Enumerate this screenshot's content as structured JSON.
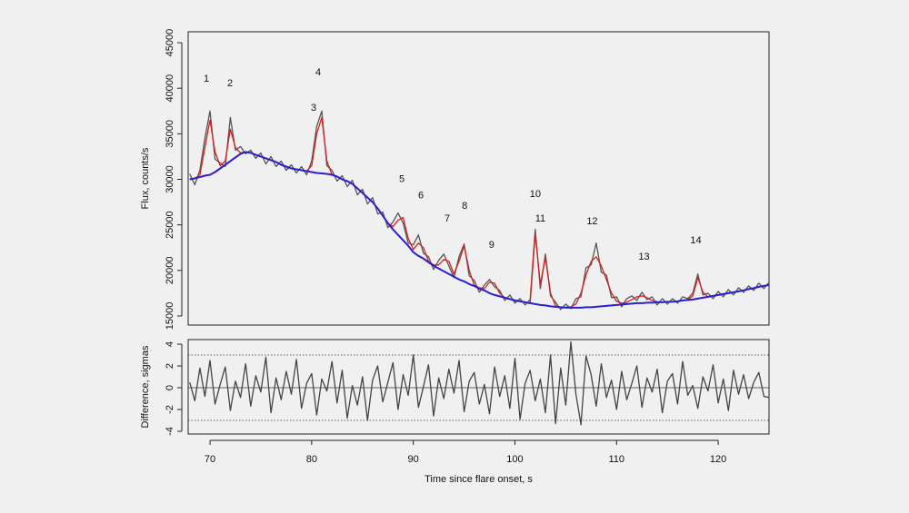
{
  "chart_data": [
    {
      "type": "line",
      "ylabel": "Flux, counts/s",
      "xlim": [
        67.85,
        125
      ],
      "ylim": [
        14000,
        46200
      ],
      "yticks": [
        15000,
        20000,
        25000,
        30000,
        35000,
        40000,
        45000
      ],
      "x": [
        68,
        68.5,
        69,
        69.5,
        70,
        70.5,
        71,
        71.5,
        72,
        72.5,
        73,
        73.5,
        74,
        74.5,
        75,
        75.5,
        76,
        76.5,
        77,
        77.5,
        78,
        78.5,
        79,
        79.5,
        80,
        80.5,
        81,
        81.5,
        82,
        82.5,
        83,
        83.5,
        84,
        84.5,
        85,
        85.5,
        86,
        86.5,
        87,
        87.5,
        88,
        88.5,
        89,
        89.5,
        90,
        90.5,
        91,
        91.5,
        92,
        92.5,
        93,
        93.5,
        94,
        94.5,
        95,
        95.5,
        96,
        96.5,
        97,
        97.5,
        98,
        98.5,
        99,
        99.5,
        100,
        100.5,
        101,
        101.5,
        102,
        102.5,
        103,
        103.5,
        104,
        104.5,
        105,
        105.5,
        106,
        106.5,
        107,
        107.5,
        108,
        108.5,
        109,
        109.5,
        110,
        110.5,
        111,
        111.5,
        112,
        112.5,
        113,
        113.5,
        114,
        114.5,
        115,
        115.5,
        116,
        116.5,
        117,
        117.5,
        118,
        118.5,
        119,
        119.5,
        120,
        120.5,
        121,
        121.5,
        122,
        122.5,
        123,
        123.5,
        124,
        124.5,
        125
      ],
      "series": [
        {
          "color": "#555555",
          "values": [
            30600,
            29400,
            31000,
            34500,
            37500,
            32200,
            31800,
            31400,
            36800,
            33200,
            33600,
            32800,
            33200,
            32300,
            32900,
            31700,
            32500,
            31400,
            32000,
            31000,
            31600,
            30700,
            31400,
            30500,
            32000,
            35800,
            37500,
            31500,
            31000,
            29800,
            30400,
            29200,
            29900,
            28300,
            28900,
            27300,
            28000,
            26200,
            26400,
            24700,
            25300,
            26300,
            25200,
            23000,
            22800,
            23900,
            21900,
            21500,
            20100,
            21100,
            21800,
            20500,
            19200,
            21500,
            22900,
            19400,
            18900,
            17600,
            18400,
            19000,
            18200,
            17800,
            16700,
            17300,
            16400,
            16900,
            16200,
            16800,
            24500,
            18000,
            21800,
            17200,
            16500,
            15700,
            16300,
            15800,
            16900,
            17100,
            20300,
            20600,
            23000,
            19800,
            19500,
            17000,
            17100,
            16000,
            16900,
            17200,
            16700,
            17600,
            16800,
            17100,
            16200,
            16900,
            16300,
            16900,
            16400,
            17100,
            16900,
            17500,
            19600,
            17300,
            17500,
            16900,
            17700,
            17100,
            17900,
            17300,
            18100,
            17600,
            18300,
            17800,
            18600,
            18000,
            18700
          ]
        },
        {
          "color": "#d42020",
          "values": [
            30000,
            30100,
            30500,
            33500,
            36500,
            33000,
            31500,
            32000,
            35500,
            33500,
            32900,
            33000,
            32900,
            32700,
            32500,
            32300,
            32100,
            31900,
            31600,
            31400,
            31200,
            31100,
            31000,
            30900,
            31500,
            35000,
            36800,
            32000,
            30500,
            30300,
            30000,
            29800,
            29500,
            29000,
            28500,
            28000,
            27500,
            26800,
            26000,
            25200,
            24800,
            25500,
            25800,
            23500,
            22300,
            23000,
            22500,
            21000,
            20600,
            20600,
            21200,
            21000,
            19600,
            21000,
            22700,
            20000,
            18400,
            18100,
            18000,
            18700,
            18600,
            17500,
            17000,
            16850,
            16700,
            16600,
            16500,
            16400,
            24000,
            18500,
            21400,
            17500,
            16100,
            15950,
            15950,
            16000,
            16300,
            17500,
            19500,
            21000,
            21500,
            20500,
            19000,
            17500,
            16600,
            16400,
            16500,
            16800,
            17100,
            17200,
            17000,
            16700,
            16550,
            16500,
            16550,
            16550,
            16600,
            16700,
            16750,
            17200,
            19200,
            17600,
            17100,
            17200,
            17300,
            17400,
            17500,
            17600,
            17700,
            17800,
            17950,
            18050,
            18200,
            18300,
            18400
          ]
        },
        {
          "color": "#2a1fcf",
          "values": [
            30000,
            30100,
            30250,
            30400,
            30500,
            30800,
            31200,
            31600,
            32000,
            32400,
            32800,
            33000,
            32900,
            32700,
            32500,
            32300,
            32100,
            31900,
            31600,
            31400,
            31200,
            31100,
            31000,
            30900,
            30800,
            30700,
            30650,
            30600,
            30500,
            30300,
            30000,
            29800,
            29500,
            29000,
            28500,
            28000,
            27500,
            26800,
            26000,
            25200,
            24500,
            23900,
            23300,
            22700,
            22000,
            21600,
            21300,
            20900,
            20500,
            20200,
            19900,
            19600,
            19300,
            19000,
            18800,
            18500,
            18300,
            18000,
            17800,
            17500,
            17300,
            17150,
            17000,
            16850,
            16700,
            16600,
            16500,
            16400,
            16300,
            16200,
            16150,
            16050,
            16000,
            15950,
            15900,
            15900,
            15900,
            15900,
            15950,
            15950,
            16000,
            16050,
            16100,
            16150,
            16200,
            16250,
            16300,
            16350,
            16400,
            16400,
            16450,
            16450,
            16500,
            16500,
            16550,
            16550,
            16600,
            16700,
            16750,
            16800,
            16900,
            17000,
            17100,
            17200,
            17300,
            17400,
            17500,
            17600,
            17700,
            17800,
            17950,
            18050,
            18200,
            18300,
            18400
          ]
        }
      ],
      "annotations": [
        {
          "text": "1",
          "x": 69.64,
          "y": 41000
        },
        {
          "text": "2",
          "x": 71.97,
          "y": 40500
        },
        {
          "text": "3",
          "x": 80.2,
          "y": 37800
        },
        {
          "text": "4",
          "x": 80.64,
          "y": 41700
        },
        {
          "text": "5",
          "x": 88.87,
          "y": 30000
        },
        {
          "text": "6",
          "x": 90.75,
          "y": 28200
        },
        {
          "text": "7",
          "x": 93.35,
          "y": 25650
        },
        {
          "text": "8",
          "x": 95.05,
          "y": 27050
        },
        {
          "text": "9",
          "x": 97.7,
          "y": 22750
        },
        {
          "text": "10",
          "x": 102.0,
          "y": 28350
        },
        {
          "text": "11",
          "x": 102.5,
          "y": 25650
        },
        {
          "text": "12",
          "x": 107.6,
          "y": 25350
        },
        {
          "text": "13",
          "x": 112.7,
          "y": 21450
        },
        {
          "text": "14",
          "x": 117.8,
          "y": 23250
        }
      ]
    },
    {
      "type": "line",
      "xlabel": "Time since flare onset, s",
      "ylabel": "Difference, sigmas",
      "xlim": [
        67.85,
        125
      ],
      "ylim": [
        -4.25,
        4.42
      ],
      "xticks": [
        70,
        80,
        90,
        100,
        110,
        120
      ],
      "yticks": [
        -4,
        -2,
        0,
        2,
        4
      ],
      "hlines": [
        {
          "value": 3,
          "dash": "dotted"
        },
        {
          "value": 0,
          "dash": "solid"
        },
        {
          "value": -3,
          "dash": "dotted"
        }
      ],
      "x": [
        68,
        68.5,
        69,
        69.5,
        70,
        70.5,
        71,
        71.5,
        72,
        72.5,
        73,
        73.5,
        74,
        74.5,
        75,
        75.5,
        76,
        76.5,
        77,
        77.5,
        78,
        78.5,
        79,
        79.5,
        80,
        80.5,
        81,
        81.5,
        82,
        82.5,
        83,
        83.5,
        84,
        84.5,
        85,
        85.5,
        86,
        86.5,
        87,
        87.5,
        88,
        88.5,
        89,
        89.5,
        90,
        90.5,
        91,
        91.5,
        92,
        92.5,
        93,
        93.5,
        94,
        94.5,
        95,
        95.5,
        96,
        96.5,
        97,
        97.5,
        98,
        98.5,
        99,
        99.5,
        100,
        100.5,
        101,
        101.5,
        102,
        102.5,
        103,
        103.5,
        104,
        104.5,
        105,
        105.5,
        106,
        106.5,
        107,
        107.5,
        108,
        108.5,
        109,
        109.5,
        110,
        110.5,
        111,
        111.5,
        112,
        112.5,
        113,
        113.5,
        114,
        114.5,
        115,
        115.5,
        116,
        116.5,
        117,
        117.5,
        118,
        118.5,
        119,
        119.5,
        120,
        120.5,
        121,
        121.5,
        122,
        122.5,
        123,
        123.5,
        124,
        124.5,
        125
      ],
      "series": [
        {
          "color": "#444444",
          "values": [
            0.5,
            -1.2,
            1.8,
            -0.8,
            2.5,
            -1.5,
            0.3,
            1.9,
            -2.1,
            0.6,
            -0.9,
            2.2,
            -1.7,
            1.1,
            -0.4,
            2.8,
            -2.3,
            0.9,
            -1.1,
            1.5,
            -0.6,
            2.6,
            -1.9,
            0.4,
            1.3,
            -2.5,
            0.8,
            -0.3,
            2.4,
            -1.4,
            1.6,
            -2.8,
            0.2,
            -1.6,
            1.0,
            -3.0,
            0.7,
            2.0,
            -1.3,
            0.5,
            2.3,
            -2.0,
            1.2,
            -0.7,
            3.0,
            -1.8,
            0.1,
            2.1,
            -2.6,
            0.9,
            -1.0,
            1.7,
            -0.5,
            2.5,
            -2.2,
            0.6,
            1.4,
            -1.5,
            0.3,
            -2.4,
            1.9,
            -0.8,
            1.1,
            -1.9,
            2.7,
            -2.9,
            0.4,
            1.6,
            -1.2,
            0.8,
            -2.3,
            3.0,
            -3.3,
            1.8,
            -1.6,
            4.2,
            -0.6,
            -3.4,
            2.9,
            1.2,
            -1.7,
            2.2,
            -0.9,
            0.7,
            -2.0,
            1.5,
            -1.1,
            0.4,
            2.0,
            -1.8,
            0.9,
            -0.4,
            1.7,
            -2.3,
            0.6,
            1.3,
            -1.5,
            2.4,
            -0.7,
            0.2,
            -1.9,
            1.0,
            -0.3,
            2.1,
            -1.4,
            0.8,
            -2.1,
            1.6,
            -0.6,
            1.2,
            -1.0,
            0.5,
            1.4,
            -0.8,
            -0.9
          ]
        }
      ]
    }
  ]
}
